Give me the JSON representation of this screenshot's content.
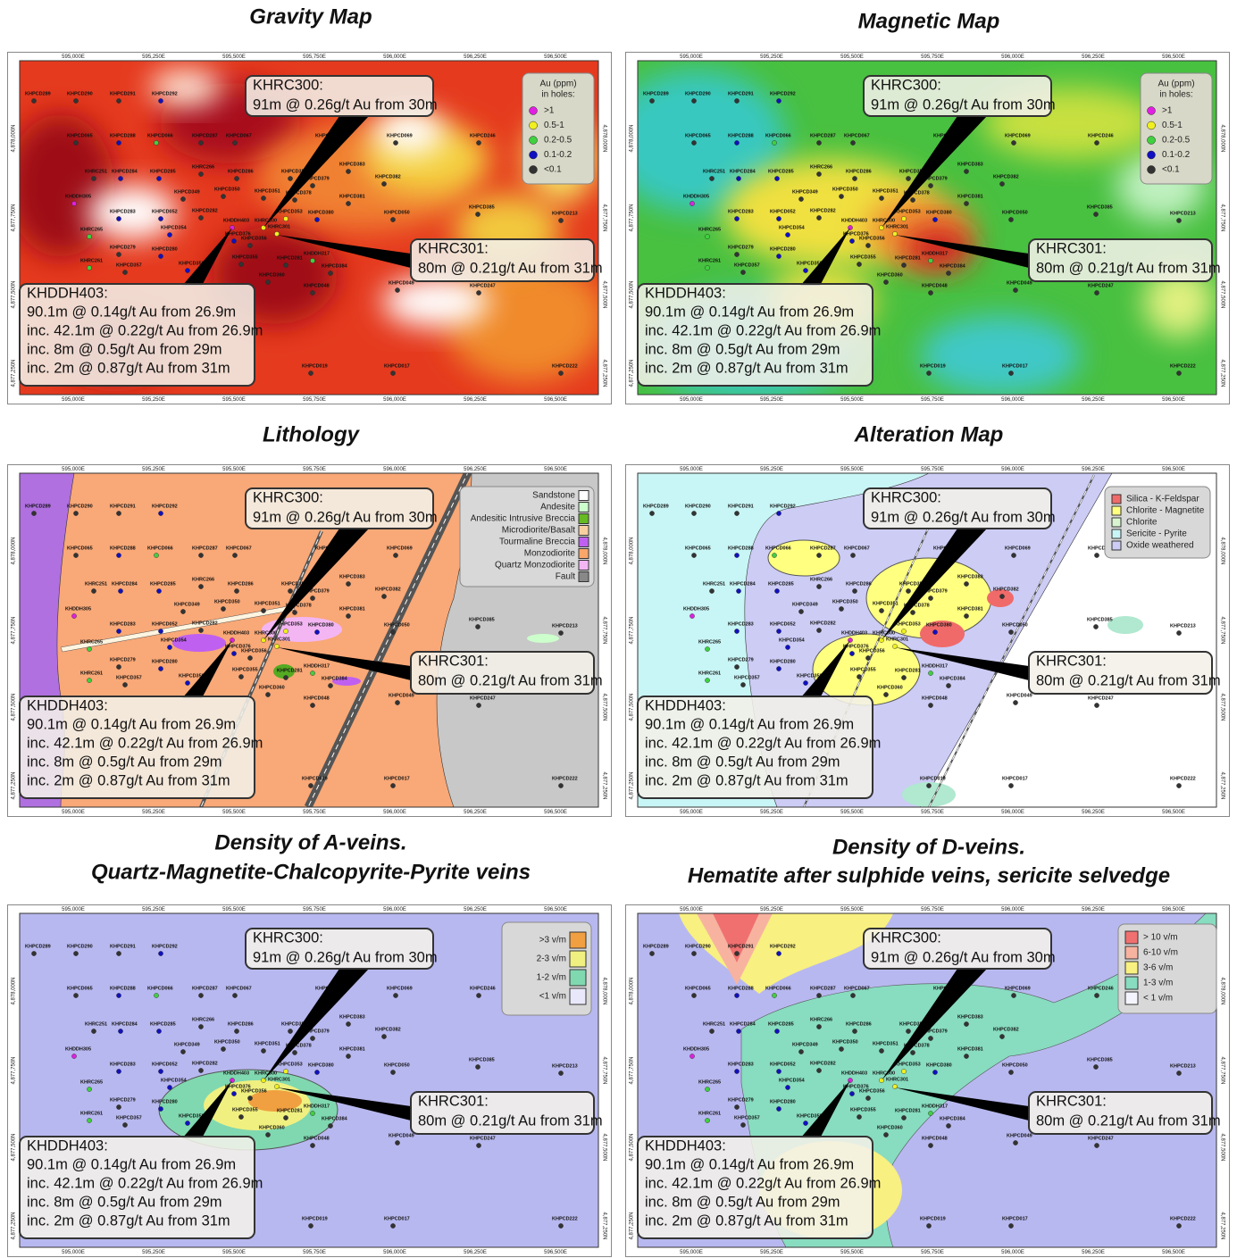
{
  "panels": [
    {
      "title": [
        "Gravity Map"
      ],
      "legend": {
        "title": [
          "Au (ppm)",
          "in holes:"
        ],
        "items": [
          {
            "label": ">1",
            "color": "#e020e0"
          },
          {
            "label": "0.5-1",
            "color": "#f0f020"
          },
          {
            "label": "0.2-0.5",
            "color": "#40d040"
          },
          {
            "label": "0.1-0.2",
            "color": "#1010c0"
          },
          {
            "label": "<0.1",
            "color": "#333333"
          }
        ]
      }
    },
    {
      "title": [
        "Magnetic Map"
      ],
      "legend": {
        "title": [
          "Au (ppm)",
          "in holes:"
        ],
        "items": [
          {
            "label": ">1",
            "color": "#e020e0"
          },
          {
            "label": "0.5-1",
            "color": "#f0f020"
          },
          {
            "label": "0.2-0.5",
            "color": "#40d040"
          },
          {
            "label": "0.1-0.2",
            "color": "#1010c0"
          },
          {
            "label": "<0.1",
            "color": "#333333"
          }
        ]
      }
    },
    {
      "title": [
        "Lithology"
      ],
      "legend": {
        "items": [
          {
            "label": "Sandstone",
            "color": "#ffffff"
          },
          {
            "label": "Andesite",
            "color": "#ccffcc"
          },
          {
            "label": "Andesitic Intrusive Breccia",
            "color": "#66bb22"
          },
          {
            "label": "Microdiorite/Basalt",
            "color": "#f8cfa0"
          },
          {
            "label": "Tourmaline Breccia",
            "color": "#c060f0"
          },
          {
            "label": "Monzodiorite",
            "color": "#f9a66b"
          },
          {
            "label": "Quartz Monzodiorite",
            "color": "#f3b6f3"
          },
          {
            "label": "Fault",
            "color": "#888888"
          }
        ]
      }
    },
    {
      "title": [
        "Alteration Map"
      ],
      "legend": {
        "items": [
          {
            "label": "Silica - K-Feldspar",
            "color": "#f06a6a"
          },
          {
            "label": "Chlorite - Magnetite",
            "color": "#ffff80"
          },
          {
            "label": "Chlorite",
            "color": "#d8f5d0"
          },
          {
            "label": "Sericite - Pyrite",
            "color": "#c8f5f5"
          },
          {
            "label": "Oxide weathered",
            "color": "#ccccf5"
          }
        ]
      }
    },
    {
      "title": [
        "Density of A-veins.",
        "Quartz-Magnetite-Chalcopyrite-Pyrite veins"
      ],
      "legend": {
        "items": [
          {
            "label": ">3 v/m",
            "color": "#f0a040"
          },
          {
            "label": "2-3 v/m",
            "color": "#f0f080"
          },
          {
            "label": "1-2 v/m",
            "color": "#80d8b0"
          },
          {
            "label": "<1 v/m",
            "color": "#e8e8fa"
          }
        ]
      }
    },
    {
      "title": [
        "Density of D-veins.",
        "Hematite after sulphide veins, sericite selvedge"
      ],
      "legend": {
        "items": [
          {
            "label": "> 10 v/m",
            "color": "#f07070"
          },
          {
            "label": "6-10 v/m",
            "color": "#f7b3a0"
          },
          {
            "label": "3-6 v/m",
            "color": "#f8f080"
          },
          {
            "label": "1-3 v/m",
            "color": "#88dcc0"
          },
          {
            "label": "< 1 v/m",
            "color": "#f4f4ff"
          }
        ]
      }
    }
  ],
  "easting": [
    "595,000E",
    "595,250E",
    "595,500E",
    "595,750E",
    "596,000E",
    "596,250E",
    "596,500E"
  ],
  "northing": [
    "4,878,000N",
    "4,877,750N",
    "4,877,500N",
    "4,877,250N"
  ],
  "intercepts": [
    [
      "KHRC300:",
      "91m @ 0.26g/t Au from 30m"
    ],
    [
      "KHRC301:",
      "80m @ 0.21g/t Au from 31m"
    ],
    [
      "KHDDH403:",
      "90.1m @ 0.14g/t Au from 26.9m",
      "inc. 42.1m @ 0.22g/t Au from 26.9m",
      "inc. 8m @ 0.5g/t Au from 29m",
      "inc. 2m @ 0.87g/t Au from 31m"
    ]
  ],
  "holes": [
    {
      "name": "KHPCD289",
      "color": "#333333"
    },
    {
      "name": "KHPCD290",
      "color": "#333333"
    },
    {
      "name": "KHPCD291",
      "color": "#333333"
    },
    {
      "name": "KHPCD292",
      "color": "#1010c0"
    },
    {
      "name": "KHPCD065",
      "color": "#333333"
    },
    {
      "name": "KHPCD288",
      "color": "#1010c0"
    },
    {
      "name": "KHPCD066",
      "color": "#40d040"
    },
    {
      "name": "KHPCD287",
      "color": "#333333"
    },
    {
      "name": "KHPCD067",
      "color": "#333333"
    },
    {
      "name": "KHPCD068",
      "color": "#333333"
    },
    {
      "name": "KHPCD069",
      "color": "#333333"
    },
    {
      "name": "KHPCD246",
      "color": "#333333"
    },
    {
      "name": "KHRC251",
      "color": "#333333"
    },
    {
      "name": "KHPCD284",
      "color": "#1010c0"
    },
    {
      "name": "KHPCD285",
      "color": "#1010c0"
    },
    {
      "name": "KHRC266",
      "color": "#333333"
    },
    {
      "name": "KHPCD286",
      "color": "#333333"
    },
    {
      "name": "KHPCD352",
      "color": "#333333"
    },
    {
      "name": "KHPCD383",
      "color": "#333333"
    },
    {
      "name": "KHPCD379",
      "color": "#333333"
    },
    {
      "name": "KHPCD382",
      "color": "#333333"
    },
    {
      "name": "KHPCD349",
      "color": "#333333"
    },
    {
      "name": "KHPCD350",
      "color": "#333333"
    },
    {
      "name": "KHPCD351",
      "color": "#333333"
    },
    {
      "name": "KHPCD378",
      "color": "#333333"
    },
    {
      "name": "KHPCD381",
      "color": "#333333"
    },
    {
      "name": "KHDDH305",
      "color": "#e020e0"
    },
    {
      "name": "KHPCD283",
      "color": "#1010c0"
    },
    {
      "name": "KHPCD052",
      "color": "#1010c0"
    },
    {
      "name": "KHPCD282",
      "color": "#333333"
    },
    {
      "name": "KHPCD385",
      "color": "#333333"
    },
    {
      "name": "KHPCD213",
      "color": "#333333"
    },
    {
      "name": "KHPCD380",
      "color": "#1010c0"
    },
    {
      "name": "KHPCD050",
      "color": "#333333"
    },
    {
      "name": "KHPCD353",
      "color": "#f0f020"
    },
    {
      "name": "KHRC265",
      "color": "#40d040"
    },
    {
      "name": "KHPCD354",
      "color": "#1010c0"
    },
    {
      "name": "KHDDH403",
      "color": "#e020e0"
    },
    {
      "name": "KHRC300",
      "color": "#f0f020"
    },
    {
      "name": "KHRC301",
      "color": "#f0f020"
    },
    {
      "name": "KHPCD376",
      "color": "#1010c0"
    },
    {
      "name": "KHPCD356",
      "color": "#333333"
    },
    {
      "name": "KHPCD279",
      "color": "#333333"
    },
    {
      "name": "KHPCD280",
      "color": "#1010c0"
    },
    {
      "name": "KHPCD355",
      "color": "#333333"
    },
    {
      "name": "KHPCD281",
      "color": "#333333"
    },
    {
      "name": "KHDDH317",
      "color": "#40d040"
    },
    {
      "name": "KHPCD384",
      "color": "#333333"
    },
    {
      "name": "KHRC261",
      "color": "#40d040"
    },
    {
      "name": "KHPCD357",
      "color": "#333333"
    },
    {
      "name": "KHPCD358",
      "color": "#1010c0"
    },
    {
      "name": "KHPCD360",
      "color": "#333333"
    },
    {
      "name": "KHPCD048",
      "color": "#333333"
    },
    {
      "name": "KHPCD049",
      "color": "#333333"
    },
    {
      "name": "KHPCD247",
      "color": "#333333"
    },
    {
      "name": "KHPCD019",
      "color": "#333333"
    },
    {
      "name": "KHPCD017",
      "color": "#333333"
    },
    {
      "name": "KHPCD222",
      "color": "#333333"
    }
  ]
}
